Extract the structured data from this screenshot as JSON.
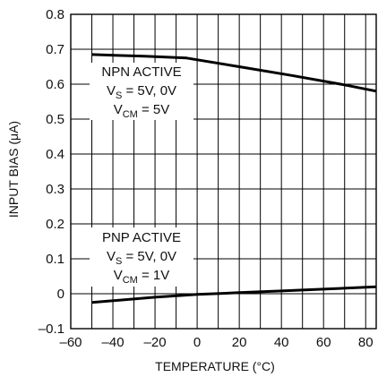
{
  "chart_data": {
    "type": "line",
    "xlabel": "TEMPERATURE (°C)",
    "ylabel": "INPUT BIAS (μA)",
    "xlim": [
      -60,
      85
    ],
    "ylim": [
      -0.1,
      0.8
    ],
    "x_ticks": [
      -60,
      -40,
      -20,
      0,
      20,
      40,
      60,
      80
    ],
    "x_tick_labels": [
      "–60",
      "–40",
      "–20",
      "0",
      "20",
      "40",
      "60",
      "80"
    ],
    "y_ticks": [
      -0.1,
      0,
      0.1,
      0.2,
      0.3,
      0.4,
      0.5,
      0.6,
      0.7,
      0.8
    ],
    "y_tick_labels": [
      "–0.1",
      "0",
      "0.1",
      "0.2",
      "0.3",
      "0.4",
      "0.5",
      "0.6",
      "0.7",
      "0.8"
    ],
    "x_grid_step": 10,
    "grid": true,
    "series": [
      {
        "x": [
          -50,
          -25,
          -5,
          20,
          45,
          70,
          85
        ],
        "y": [
          0.685,
          0.68,
          0.675,
          0.65,
          0.625,
          0.598,
          0.58
        ]
      },
      {
        "x": [
          -50,
          -20,
          0,
          20,
          40,
          60,
          85
        ],
        "y": [
          -0.025,
          -0.01,
          -0.002,
          0.003,
          0.008,
          0.013,
          0.02
        ]
      }
    ],
    "annotations": [
      {
        "id": "npn",
        "line1": "NPN ACTIVE",
        "line2_main": "V",
        "line2_sub": "S",
        "line2_rest": " = 5V, 0V",
        "line3_main": "V",
        "line3_sub": "CM",
        "line3_rest": " = 5V"
      },
      {
        "id": "pnp",
        "line1": "PNP ACTIVE",
        "line2_main": "V",
        "line2_sub": "S",
        "line2_rest": " = 5V, 0V",
        "line3_main": "V",
        "line3_sub": "CM",
        "line3_rest": " = 1V"
      }
    ],
    "line_color": "#000000",
    "grid_color": "#000000"
  }
}
